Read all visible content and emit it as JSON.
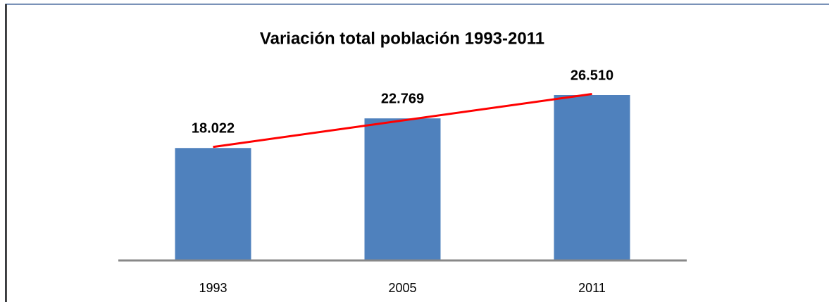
{
  "chart_data": {
    "type": "bar",
    "title": "Variación total población 1993-2011",
    "categories": [
      "1993",
      "2005",
      "2011"
    ],
    "values": [
      18022,
      22769,
      26510
    ],
    "value_labels": [
      "18.022",
      "22.769",
      "26.510"
    ],
    "color": "#4f81bd",
    "trendline": true,
    "trendline_color": "#ff0000"
  }
}
